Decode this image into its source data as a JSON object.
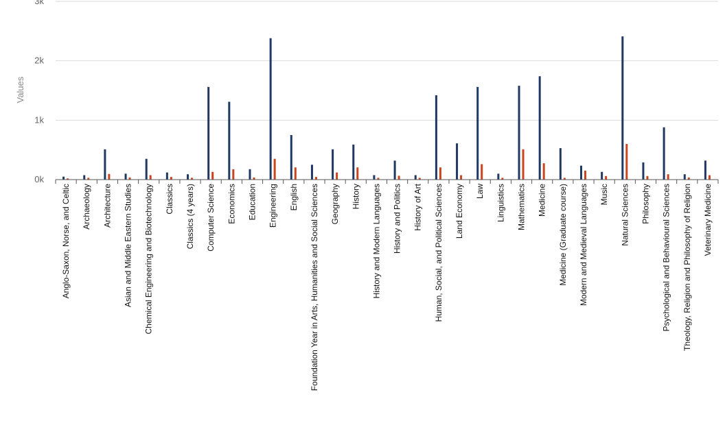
{
  "chart_data": {
    "type": "bar",
    "title": "",
    "xlabel": "",
    "ylabel": "Values",
    "ylim": [
      0,
      3000
    ],
    "yticks": [
      {
        "value": 0,
        "label": "0k"
      },
      {
        "value": 1000,
        "label": "1k"
      },
      {
        "value": 2000,
        "label": "2k"
      },
      {
        "value": 3000,
        "label": "3k"
      }
    ],
    "grid": true,
    "legend": "none",
    "categories": [
      "Anglo-Saxon, Norse, and Celtic",
      "Archaeology",
      "Architecture",
      "Asian and Middle Eastern Studies",
      "Chemical Engineering and Biotechnology",
      "Classics",
      "Classics (4 years)",
      "Computer Science",
      "Economics",
      "Education",
      "Engineering",
      "English",
      "Foundation Year in Arts, Humanities and Social Sciences",
      "Geography",
      "History",
      "History and Modern Languages",
      "History and Politics",
      "History of Art",
      "Human, Social, and Political Sciences",
      "Land Economy",
      "Law",
      "Linguistics",
      "Mathematics",
      "Medicine",
      "Medicine (Graduate course)",
      "Modern and Medieval Languages",
      "Music",
      "Natural Sciences",
      "Philosophy",
      "Psychological and Behavioural Sciences",
      "Theology, Religion and Philosophy of Religion",
      "Veterinary Medicine"
    ],
    "series": [
      {
        "color": "#1f3864",
        "values": [
          50,
          75,
          510,
          100,
          350,
          120,
          90,
          1560,
          1310,
          175,
          2380,
          750,
          250,
          510,
          590,
          75,
          320,
          75,
          1420,
          610,
          1560,
          100,
          1580,
          1740,
          530,
          235,
          130,
          2410,
          290,
          880,
          90,
          320
        ]
      },
      {
        "color": "#c8451f",
        "values": [
          20,
          30,
          95,
          35,
          75,
          45,
          30,
          130,
          175,
          35,
          350,
          205,
          45,
          120,
          205,
          30,
          65,
          30,
          205,
          75,
          260,
          30,
          510,
          275,
          30,
          150,
          60,
          600,
          60,
          90,
          35,
          75
        ]
      }
    ]
  }
}
